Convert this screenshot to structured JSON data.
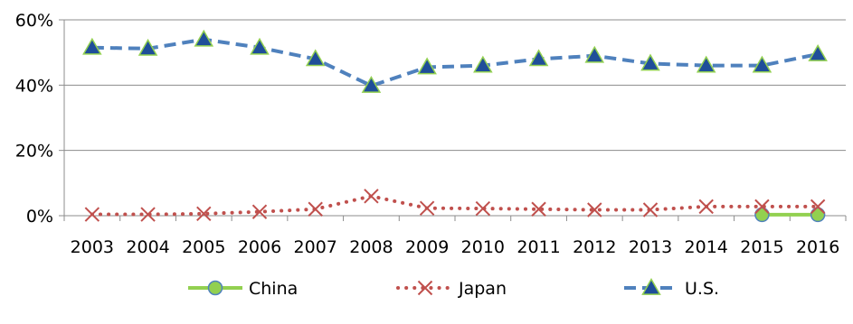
{
  "chart_data": {
    "type": "line",
    "title": "",
    "xlabel": "",
    "ylabel": "",
    "categories": [
      "2003",
      "2004",
      "2005",
      "2006",
      "2007",
      "2008",
      "2009",
      "2010",
      "2011",
      "2012",
      "2013",
      "2014",
      "2015",
      "2016"
    ],
    "ylim": [
      0,
      0.6
    ],
    "y_ticks": [
      {
        "value": 0,
        "label": "0%"
      },
      {
        "value": 0.2,
        "label": "20%"
      },
      {
        "value": 0.4,
        "label": "40%"
      },
      {
        "value": 0.6,
        "label": "60%"
      }
    ],
    "grid": true,
    "legend_position": "bottom",
    "series": [
      {
        "name": "China",
        "color": "#92d050",
        "marker": "circle",
        "line_style": "solid",
        "values": [
          null,
          null,
          null,
          null,
          null,
          null,
          null,
          null,
          null,
          null,
          null,
          null,
          0.003,
          0.003
        ]
      },
      {
        "name": "Japan",
        "color": "#c0504d",
        "marker": "x",
        "line_style": "dotted",
        "values": [
          0.004,
          0.004,
          0.006,
          0.012,
          0.02,
          0.06,
          0.023,
          0.022,
          0.02,
          0.018,
          0.018,
          0.028,
          0.028,
          0.028
        ]
      },
      {
        "name": "U.S.",
        "color": "#4f81bd",
        "marker": "triangle",
        "marker_fill": "#1f4e99",
        "marker_stroke": "#92d050",
        "line_style": "dashed",
        "values": [
          0.515,
          0.512,
          0.54,
          0.515,
          0.48,
          0.398,
          0.455,
          0.46,
          0.48,
          0.49,
          0.466,
          0.46,
          0.46,
          0.495
        ]
      }
    ]
  }
}
